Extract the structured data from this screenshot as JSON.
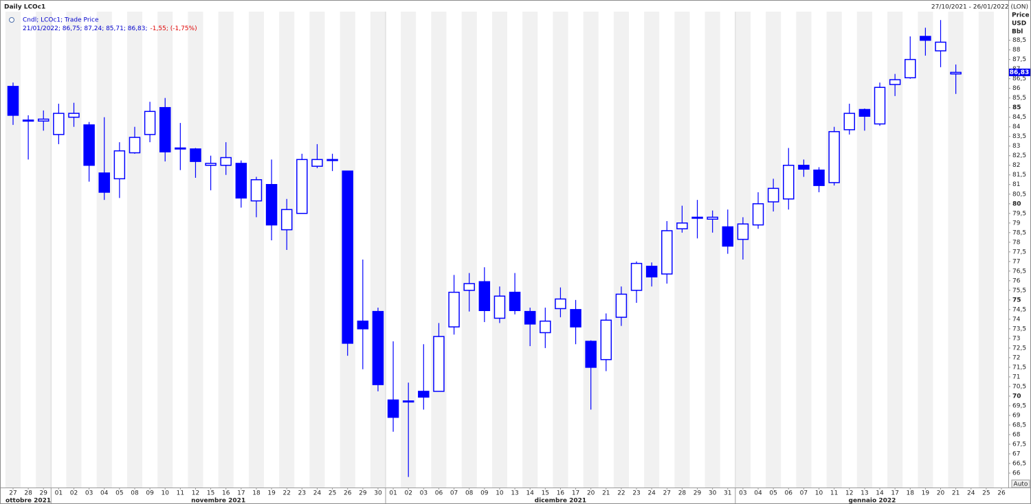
{
  "chart_data": {
    "type": "candlestick",
    "title": "Daily LCOc1",
    "subtitle": "27/10/2021 - 26/01/2022 (LON)",
    "y_axis_label": [
      "Price",
      "USD",
      "Bbl"
    ],
    "annotations": [
      "21/01/2022; 86,75; 87,24; 85,71; 86,83;",
      "-1,55; (-1,75%)"
    ],
    "button": "Auto",
    "categories": [
      "27",
      "28",
      "29",
      "01",
      "02",
      "03",
      "04",
      "05",
      "08",
      "09",
      "10",
      "11",
      "12",
      "15",
      "16",
      "17",
      "18",
      "19",
      "22",
      "23",
      "24",
      "25",
      "26",
      "29",
      "30",
      "01",
      "02",
      "03",
      "06",
      "07",
      "08",
      "09",
      "10",
      "13",
      "14",
      "15",
      "16",
      "17",
      "20",
      "21",
      "22",
      "23",
      "24",
      "27",
      "28",
      "29",
      "30",
      "31",
      "03",
      "04",
      "05",
      "06",
      "07",
      "10",
      "11",
      "12",
      "13",
      "14",
      "17",
      "18",
      "19",
      "20",
      "21",
      "24",
      "25",
      "26"
    ],
    "months": [
      "ottobre 2021",
      "novembre 2021",
      "dicembre 2021",
      "gennaio 2022"
    ],
    "series": [
      {
        "name": "Cndl; LCOc1; Trade Price",
        "color": "#0000ff",
        "open": [
          86.1,
          84.35,
          84.3,
          83.6,
          84.5,
          84.1,
          81.6,
          81.3,
          82.65,
          83.6,
          85.0,
          82.9,
          82.85,
          82.0,
          82.0,
          82.1,
          80.15,
          81.0,
          78.65,
          79.5,
          81.95,
          82.25,
          81.7,
          73.9,
          74.4,
          69.8,
          69.7,
          70.25,
          70.25,
          73.6,
          75.5,
          75.95,
          74.05,
          75.4,
          74.4,
          73.3,
          74.55,
          74.5,
          72.85,
          71.9,
          74.1,
          75.5,
          76.75,
          76.35,
          78.7,
          79.25,
          79.2,
          78.8,
          78.15,
          78.9,
          80.1,
          80.25,
          82.0,
          81.75,
          81.1,
          83.85,
          84.9,
          84.15,
          86.2,
          86.55,
          88.7,
          87.95,
          86.75,
          null,
          null,
          null
        ],
        "high": [
          86.3,
          84.6,
          84.85,
          85.2,
          85.25,
          84.25,
          84.5,
          83.2,
          84.0,
          85.3,
          85.5,
          84.2,
          82.9,
          82.5,
          83.2,
          82.25,
          81.4,
          82.3,
          80.25,
          82.6,
          83.1,
          82.6,
          81.7,
          77.1,
          74.6,
          72.85,
          70.7,
          72.7,
          73.8,
          76.3,
          76.4,
          76.7,
          75.7,
          76.4,
          74.6,
          74.6,
          75.65,
          75.0,
          72.9,
          74.3,
          75.7,
          77.0,
          76.95,
          79.1,
          79.9,
          80.2,
          79.65,
          79.7,
          79.3,
          80.6,
          81.3,
          82.9,
          82.3,
          81.9,
          84.0,
          85.2,
          84.95,
          86.3,
          86.75,
          88.7,
          89.15,
          89.55,
          87.24,
          null,
          null,
          null
        ],
        "low": [
          84.1,
          82.3,
          83.8,
          83.1,
          84.0,
          81.15,
          80.2,
          80.3,
          82.6,
          83.2,
          82.2,
          81.75,
          81.35,
          80.7,
          81.5,
          79.8,
          79.3,
          78.1,
          77.6,
          79.5,
          81.85,
          81.7,
          72.1,
          71.4,
          70.25,
          68.15,
          65.8,
          69.3,
          70.25,
          73.2,
          74.4,
          73.85,
          73.8,
          74.25,
          72.6,
          72.5,
          74.1,
          72.7,
          69.3,
          71.3,
          73.65,
          74.85,
          75.7,
          75.85,
          78.5,
          78.2,
          78.5,
          77.4,
          77.1,
          78.7,
          79.6,
          79.7,
          81.4,
          80.6,
          80.95,
          83.6,
          83.8,
          84.05,
          85.6,
          86.5,
          87.7,
          87.1,
          85.71,
          null,
          null,
          null
        ],
        "close": [
          84.6,
          84.3,
          84.4,
          84.7,
          84.7,
          82.0,
          80.6,
          82.75,
          83.45,
          84.8,
          82.7,
          82.85,
          82.2,
          82.1,
          82.4,
          80.3,
          81.25,
          78.9,
          79.7,
          82.3,
          82.3,
          82.3,
          72.75,
          73.5,
          70.6,
          68.9,
          69.75,
          69.95,
          73.1,
          75.4,
          75.85,
          74.45,
          75.2,
          74.45,
          73.75,
          73.9,
          75.05,
          73.6,
          71.5,
          73.95,
          75.3,
          76.9,
          76.2,
          78.6,
          79.0,
          79.3,
          79.3,
          77.8,
          78.95,
          80.0,
          80.8,
          82.0,
          81.8,
          80.95,
          83.75,
          84.7,
          84.55,
          86.05,
          86.45,
          87.5,
          88.5,
          88.4,
          86.83,
          null,
          null,
          null
        ]
      }
    ],
    "last_label": {
      "value": 86.83,
      "label": "86,83"
    },
    "ylim": [
      65.25,
      89.95
    ],
    "yticks": [
      66,
      {
        "value": 66.5,
        "label": "66,5"
      },
      67,
      {
        "value": 67.5,
        "label": "67,5"
      },
      68,
      {
        "value": 68.5,
        "label": "68,5"
      },
      69,
      {
        "value": 69.5,
        "label": "69,5"
      },
      70,
      {
        "value": 70.5,
        "label": "70,5"
      },
      71,
      {
        "value": 71.5,
        "label": "71,5"
      },
      72,
      {
        "value": 72.5,
        "label": "72,5"
      },
      73,
      {
        "value": 73.5,
        "label": "73,5"
      },
      74,
      {
        "value": 74.5,
        "label": "74,5"
      },
      75,
      {
        "value": 75.5,
        "label": "75,5"
      },
      76,
      {
        "value": 76.5,
        "label": "76,5"
      },
      77,
      {
        "value": 77.5,
        "label": "77,5"
      },
      78,
      {
        "value": 78.5,
        "label": "78,5"
      },
      79,
      {
        "value": 79.5,
        "label": "79,5"
      },
      80,
      {
        "value": 80.5,
        "label": "80,5"
      },
      81,
      {
        "value": 81.5,
        "label": "81,5"
      },
      82,
      {
        "value": 82.5,
        "label": "82,5"
      },
      83,
      {
        "value": 83.5,
        "label": "83,5"
      },
      84,
      {
        "value": 84.5,
        "label": "84,5"
      },
      85,
      {
        "value": 85.5,
        "label": "85,5"
      },
      86,
      {
        "value": 86.5,
        "label": "86,5"
      },
      87,
      {
        "value": 87.5,
        "label": "87,5"
      },
      88,
      {
        "value": 88.5,
        "label": "88,5"
      }
    ],
    "grid": false,
    "stripes": true
  }
}
